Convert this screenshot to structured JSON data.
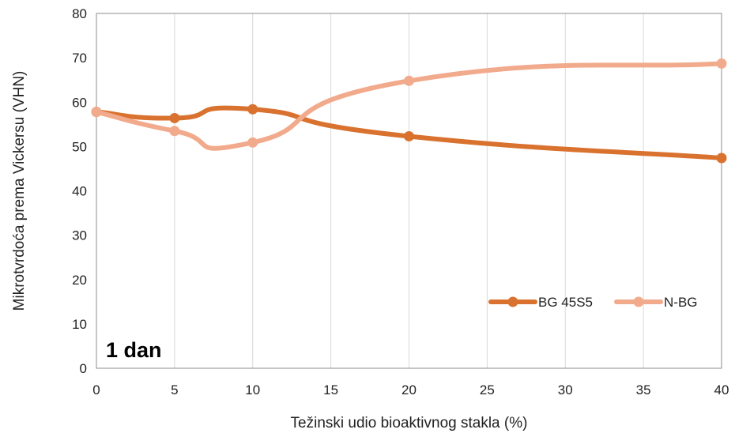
{
  "chart_data": {
    "type": "line",
    "title": "",
    "xlabel": "Težinski udio bioaktivnog stakla (%)",
    "ylabel": "Mikrotvrdoća prema Vickersu (VHN)",
    "xlim": [
      0,
      40
    ],
    "ylim": [
      0,
      80
    ],
    "x_ticks": [
      "0",
      "5",
      "10",
      "15",
      "20",
      "25",
      "30",
      "35",
      "40"
    ],
    "y_ticks": [
      "0",
      "10",
      "20",
      "30",
      "40",
      "50",
      "60",
      "70",
      "80"
    ],
    "grid": "vertical",
    "smoothed": true,
    "legend_position": "bottom-right",
    "annotation": "1 dan",
    "x": [
      0,
      5,
      10,
      20,
      40
    ],
    "series": [
      {
        "name": "BG 45S5",
        "color": "#d9722e",
        "values": [
          57.8,
          56.4,
          58.4,
          52.3,
          47.4
        ]
      },
      {
        "name": "N-BG",
        "color": "#f2aa8c",
        "values": [
          57.8,
          53.5,
          50.9,
          64.8,
          68.7
        ]
      }
    ]
  }
}
